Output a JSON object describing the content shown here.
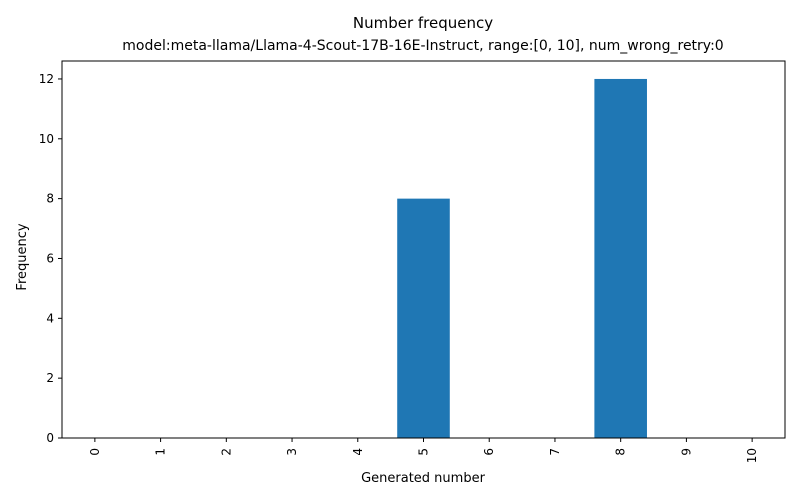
{
  "chart_data": {
    "type": "bar",
    "title": "Number frequency",
    "subtitle": "model:meta-llama/Llama-4-Scout-17B-16E-Instruct, range:[0, 10], num_wrong_retry:0",
    "xlabel": "Generated number",
    "ylabel": "Frequency",
    "categories": [
      "0",
      "1",
      "2",
      "3",
      "4",
      "5",
      "6",
      "7",
      "8",
      "9",
      "10"
    ],
    "values": [
      0,
      0,
      0,
      0,
      0,
      8,
      0,
      0,
      12,
      0,
      0
    ],
    "ylim": [
      0,
      12.6
    ],
    "yticks": [
      0,
      2,
      4,
      6,
      8,
      10,
      12
    ],
    "bar_color": "#1f77b4",
    "grid": false,
    "legend": "none"
  }
}
